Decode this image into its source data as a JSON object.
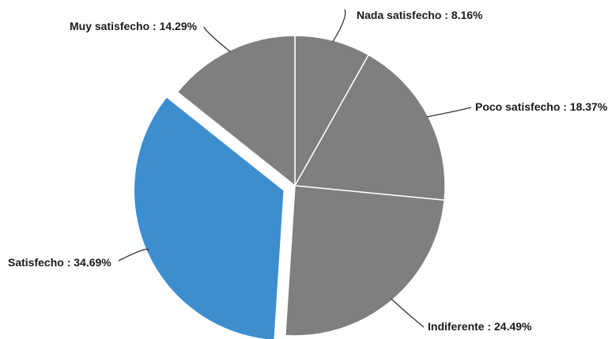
{
  "chart_data": {
    "type": "pie",
    "slices": [
      {
        "label": "Nada satisfecho",
        "value": 8.16,
        "text": "Nada satisfecho : 8.16%",
        "color": "#7f7f7f",
        "exploded": false
      },
      {
        "label": "Poco satisfecho",
        "value": 18.37,
        "text": "Poco satisfecho : 18.37%",
        "color": "#7f7f7f",
        "exploded": false
      },
      {
        "label": "Indiferente",
        "value": 24.49,
        "text": "Indiferente : 24.49%",
        "color": "#7f7f7f",
        "exploded": false
      },
      {
        "label": "Satisfecho",
        "value": 34.69,
        "text": "Satisfecho : 34.69%",
        "color": "#3d8ecf",
        "exploded": true
      },
      {
        "label": "Muy satisfecho",
        "value": 14.29,
        "text": "Muy satisfecho : 14.29%",
        "color": "#7f7f7f",
        "exploded": false
      }
    ],
    "start": "12 o'clock",
    "direction": "clockwise"
  }
}
